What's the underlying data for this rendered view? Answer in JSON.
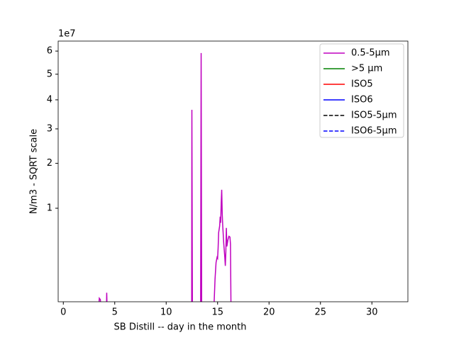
{
  "chart_data": {
    "type": "line",
    "xlabel": "SB Distill -- day in the month",
    "ylabel": "N/m3 - SQRT scale",
    "y_offset_label": "1e7",
    "yscale": "sqrt",
    "legend": "upper right",
    "grid": false,
    "xlim": [
      -0.5,
      33.5
    ],
    "ylim": [
      0.019,
      6.46
    ],
    "xticks": [
      0,
      5,
      10,
      15,
      20,
      25,
      30
    ],
    "yticks": [
      1,
      2,
      3,
      4,
      5,
      6
    ],
    "x": [
      3.45,
      3.5,
      3.6,
      3.65,
      3.9,
      4.2,
      4.22,
      4.25,
      8,
      12.48,
      12.5,
      12.55,
      13,
      13.35,
      13.4,
      13.45,
      14,
      14.65,
      14.75,
      14.85,
      14.95,
      15.0,
      15.05,
      15.1,
      15.2,
      15.25,
      15.3,
      15.35,
      15.4,
      15.45,
      15.5,
      15.6,
      15.7,
      15.75,
      15.8,
      15.85,
      15.9,
      16.0,
      16.1,
      16.2,
      16.25,
      16.3
    ],
    "series": [
      {
        "name": "0.5-5µm",
        "color": "#bf00bf",
        "dashed": false,
        "values": [
          0.01,
          0.029,
          0.025,
          0.01,
          null,
          0.01,
          0.049,
          0.01,
          null,
          0.01,
          3.64,
          0.01,
          null,
          0.01,
          5.91,
          0.01,
          null,
          0.01,
          0.12,
          0.25,
          0.3,
          0.29,
          0.4,
          0.6,
          0.7,
          0.85,
          0.75,
          1.1,
          1.37,
          0.9,
          0.7,
          0.45,
          0.3,
          0.22,
          0.35,
          0.67,
          0.42,
          0.5,
          0.55,
          0.54,
          0.45,
          0.01
        ]
      },
      {
        "name": ">5 µm",
        "color": "#008000",
        "dashed": false,
        "values": [
          null,
          null,
          null,
          null,
          null,
          null,
          null,
          null,
          null,
          null,
          null,
          null,
          null,
          null,
          null,
          null,
          null,
          null,
          null,
          null,
          null,
          null,
          null,
          null,
          null,
          null,
          null,
          null,
          null,
          null,
          null,
          null,
          null,
          null,
          null,
          null,
          null,
          null,
          null,
          null,
          null,
          null
        ]
      },
      {
        "name": "ISO5",
        "color": "#ff0000",
        "dashed": false,
        "values": [
          null,
          null,
          null,
          null,
          null,
          null,
          null,
          null,
          null,
          null,
          null,
          null,
          null,
          null,
          null,
          null,
          null,
          null,
          null,
          null,
          null,
          null,
          null,
          null,
          null,
          null,
          null,
          null,
          null,
          null,
          null,
          null,
          null,
          null,
          null,
          null,
          null,
          null,
          null,
          null,
          null,
          null
        ]
      },
      {
        "name": "ISO6",
        "color": "#0000ff",
        "dashed": false,
        "values": [
          null,
          null,
          null,
          null,
          null,
          null,
          null,
          null,
          null,
          null,
          null,
          null,
          null,
          null,
          null,
          null,
          null,
          null,
          null,
          null,
          null,
          null,
          null,
          null,
          null,
          null,
          null,
          null,
          null,
          null,
          null,
          null,
          null,
          null,
          null,
          null,
          null,
          null,
          null,
          null,
          null,
          null
        ]
      },
      {
        "name": "ISO5-5µm",
        "color": "#000000",
        "dashed": true,
        "values": [
          null,
          null,
          null,
          null,
          null,
          null,
          null,
          null,
          null,
          null,
          null,
          null,
          null,
          null,
          null,
          null,
          null,
          null,
          null,
          null,
          null,
          null,
          null,
          null,
          null,
          null,
          null,
          null,
          null,
          null,
          null,
          null,
          null,
          null,
          null,
          null,
          null,
          null,
          null,
          null,
          null,
          null
        ]
      },
      {
        "name": "ISO6-5µm",
        "color": "#0000ff",
        "dashed": true,
        "values": [
          null,
          null,
          null,
          null,
          null,
          null,
          null,
          null,
          null,
          null,
          null,
          null,
          null,
          null,
          null,
          null,
          null,
          null,
          null,
          null,
          null,
          null,
          null,
          null,
          null,
          null,
          null,
          null,
          null,
          null,
          null,
          null,
          null,
          null,
          null,
          null,
          null,
          null,
          null,
          null,
          null,
          null
        ]
      }
    ]
  }
}
